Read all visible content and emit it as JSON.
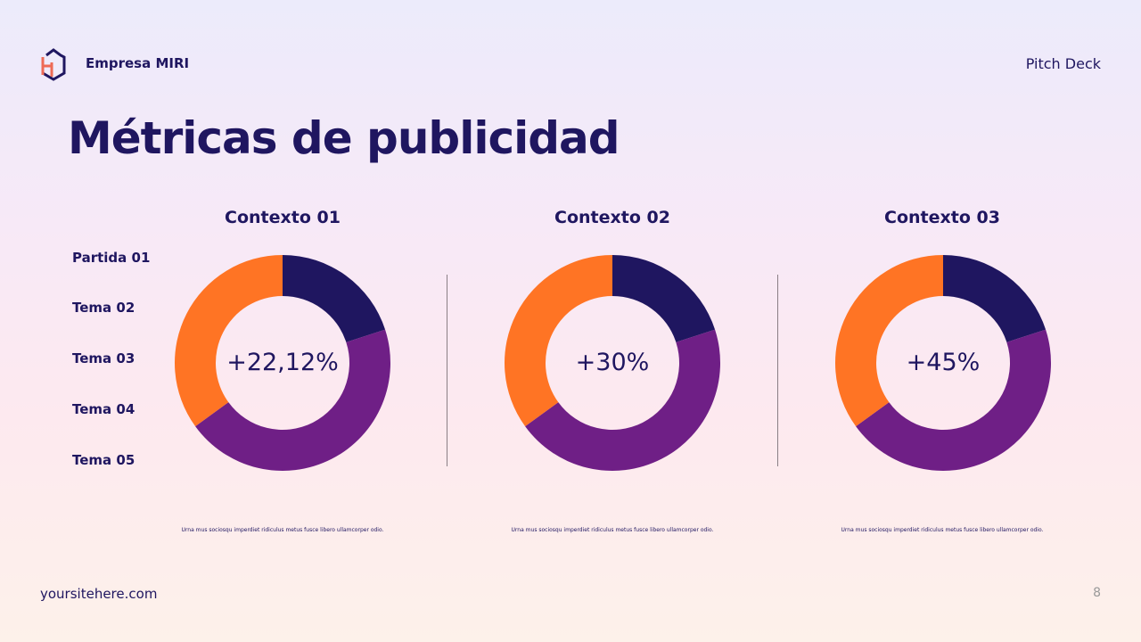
{
  "header": {
    "brand": "Empresa MIRI",
    "deck": "Pitch Deck"
  },
  "title": "Métricas de publicidad",
  "legend": [
    "Partida 01",
    "Tema 02",
    "Tema 03",
    "Tema 04",
    "Tema 05"
  ],
  "colors": {
    "navy": "#1f1660",
    "purple": "#6f1f86",
    "orange": "#ff7424"
  },
  "chart_data": [
    {
      "type": "pie",
      "title": "Contexto 01",
      "center_label": "+22,12%",
      "values": [
        20,
        45,
        35
      ],
      "note": "Urna mus sociosqu imperdiet ridiculus metus fusce libero ullamcorper odio."
    },
    {
      "type": "pie",
      "title": "Contexto 02",
      "center_label": "+30%",
      "values": [
        20,
        45,
        35
      ],
      "note": "Urna mus sociosqu imperdiet ridiculus metus fusce libero ullamcorper odio."
    },
    {
      "type": "pie",
      "title": "Contexto 03",
      "center_label": "+45%",
      "values": [
        20,
        45,
        35
      ],
      "note": "Urna mus sociosqu imperdiet ridiculus metus fusce libero ullamcorper odio."
    }
  ],
  "footer": {
    "site": "yoursitehere.com",
    "page": "8"
  }
}
